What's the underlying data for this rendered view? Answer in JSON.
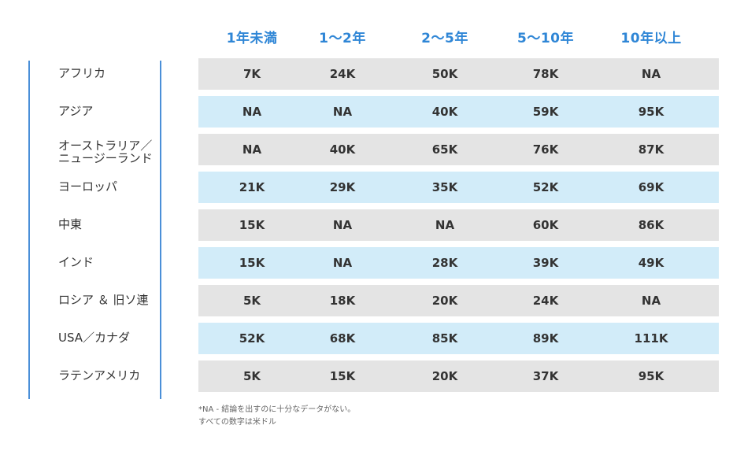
{
  "chart_data": {
    "type": "table",
    "columns": [
      "1年未満",
      "1～2年",
      "2～5年",
      "5～10年",
      "10年以上"
    ],
    "rows": [
      {
        "label": [
          "アフリカ"
        ],
        "values": [
          "7K",
          "24K",
          "50K",
          "78K",
          "NA"
        ]
      },
      {
        "label": [
          "アジア"
        ],
        "values": [
          "NA",
          "NA",
          "40K",
          "59K",
          "95K"
        ]
      },
      {
        "label": [
          "オーストラリア／",
          "ニュージーランド"
        ],
        "values": [
          "NA",
          "40K",
          "65K",
          "76K",
          "87K"
        ]
      },
      {
        "label": [
          "ヨーロッパ"
        ],
        "values": [
          "21K",
          "29K",
          "35K",
          "52K",
          "69K"
        ]
      },
      {
        "label": [
          "中東"
        ],
        "values": [
          "15K",
          "NA",
          "NA",
          "60K",
          "86K"
        ]
      },
      {
        "label": [
          "インド"
        ],
        "values": [
          "15K",
          "NA",
          "28K",
          "39K",
          "49K"
        ]
      },
      {
        "label": [
          "ロシア ＆ 旧ソ連"
        ],
        "values": [
          "5K",
          "18K",
          "20K",
          "24K",
          "NA"
        ]
      },
      {
        "label": [
          "USA／カナダ"
        ],
        "values": [
          "52K",
          "68K",
          "85K",
          "89K",
          "111K"
        ]
      },
      {
        "label": [
          "ラテンアメリカ"
        ],
        "values": [
          "5K",
          "15K",
          "20K",
          "37K",
          "95K"
        ]
      }
    ],
    "footnotes": [
      "*NA - 結論を出すのに十分なデータがない。",
      "すべての数字は米ドル"
    ]
  },
  "colors": {
    "header_text": "#2f86d6",
    "row_gray": "#e4e4e4",
    "row_blue": "#d2ecf9",
    "divider": "#4a8fd8"
  }
}
